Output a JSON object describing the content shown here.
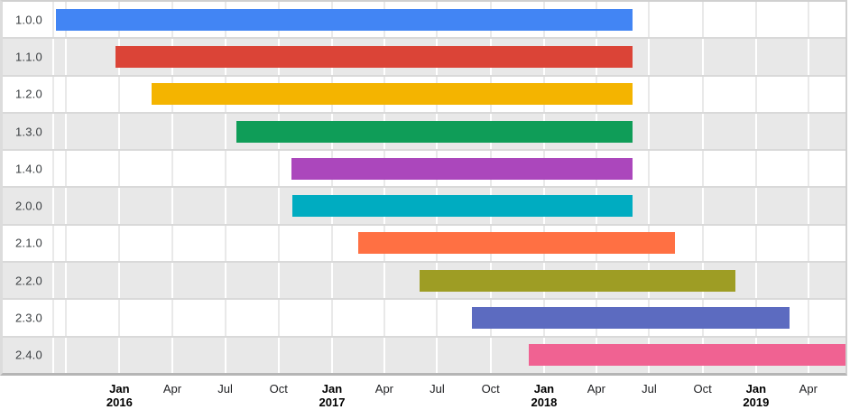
{
  "chart_data": {
    "type": "bar",
    "subtype": "gantt-timeline",
    "orientation": "horizontal",
    "title": "",
    "xlabel": "",
    "ylabel": "",
    "grid": true,
    "categories": [
      "1.0.0",
      "1.1.0",
      "1.2.0",
      "1.3.0",
      "1.4.0",
      "2.0.0",
      "2.1.0",
      "2.2.0",
      "2.3.0",
      "2.4.0"
    ],
    "series": [
      {
        "name": "1.0.0",
        "start": "2015-09-13",
        "end": "2018-06-02",
        "color": "#4285f4"
      },
      {
        "name": "1.1.0",
        "start": "2015-12-25",
        "end": "2018-06-02",
        "color": "#db4437"
      },
      {
        "name": "1.2.0",
        "start": "2016-02-26",
        "end": "2018-06-02",
        "color": "#f4b400"
      },
      {
        "name": "1.3.0",
        "start": "2016-07-21",
        "end": "2018-06-02",
        "color": "#0f9d58"
      },
      {
        "name": "1.4.0",
        "start": "2016-10-23",
        "end": "2018-06-02",
        "color": "#ab47bc"
      },
      {
        "name": "2.0.0",
        "start": "2016-10-24",
        "end": "2018-06-02",
        "color": "#00acc1"
      },
      {
        "name": "2.1.0",
        "start": "2017-02-15",
        "end": "2018-08-14",
        "color": "#ff7043"
      },
      {
        "name": "2.2.0",
        "start": "2017-05-31",
        "end": "2018-11-27",
        "color": "#9e9d24"
      },
      {
        "name": "2.3.0",
        "start": "2017-08-30",
        "end": "2019-02-27",
        "color": "#5c6bc0"
      },
      {
        "name": "2.4.0",
        "start": "2017-12-06",
        "end": "2019-06-04",
        "color": "#f06292"
      }
    ],
    "axis": {
      "start": "2015-09-09",
      "end": "2019-06-04",
      "ticks": [
        {
          "date": "2015-10-01",
          "label": "",
          "year": ""
        },
        {
          "date": "2016-01-01",
          "label": "Jan",
          "year": "2016"
        },
        {
          "date": "2016-04-01",
          "label": "Apr",
          "year": ""
        },
        {
          "date": "2016-07-01",
          "label": "Jul",
          "year": ""
        },
        {
          "date": "2016-10-01",
          "label": "Oct",
          "year": ""
        },
        {
          "date": "2017-01-01",
          "label": "Jan",
          "year": "2017"
        },
        {
          "date": "2017-04-01",
          "label": "Apr",
          "year": ""
        },
        {
          "date": "2017-07-01",
          "label": "Jul",
          "year": ""
        },
        {
          "date": "2017-10-01",
          "label": "Oct",
          "year": ""
        },
        {
          "date": "2018-01-01",
          "label": "Jan",
          "year": "2018"
        },
        {
          "date": "2018-04-01",
          "label": "Apr",
          "year": ""
        },
        {
          "date": "2018-07-01",
          "label": "Jul",
          "year": ""
        },
        {
          "date": "2018-10-01",
          "label": "Oct",
          "year": ""
        },
        {
          "date": "2019-01-01",
          "label": "Jan",
          "year": "2019"
        },
        {
          "date": "2019-04-01",
          "label": "Apr",
          "year": ""
        }
      ]
    },
    "styles": {
      "row_background_odd": "#e8e8e8",
      "row_background_even": "#ffffff",
      "gridline_on_white": "#e9e9e9",
      "gridline_on_gray": "#ffffff",
      "row_separator": "#d9d9d9",
      "axis_baseline": "#b5b5b5",
      "row_label_color": "#3b3f42",
      "axis_label_color": "#202124",
      "axis_label_bold_color": "#000000"
    }
  }
}
